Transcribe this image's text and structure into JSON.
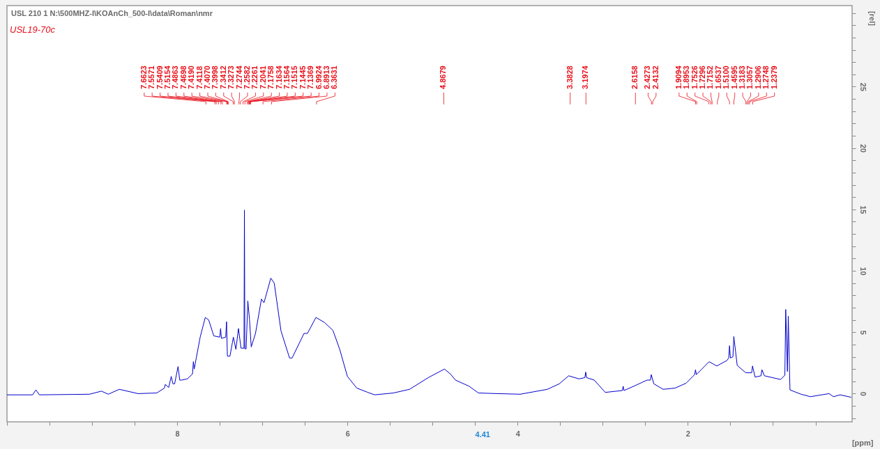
{
  "chart_data": {
    "type": "line",
    "title": "USL  210  1  N:\\500MHZ-I\\KOAnCh_500-I\\data\\Roman\\nmr",
    "subtitle": "USL19-70c",
    "xlabel": "[ppm]",
    "ylabel": "[rel]",
    "xlim": [
      10,
      0.07
    ],
    "ylim": [
      -2.3,
      31.6
    ],
    "xticks": [
      {
        "value": 10,
        "label": null
      },
      {
        "value": 9.5,
        "label": null
      },
      {
        "value": 9,
        "label": null
      },
      {
        "value": 8.5,
        "label": null
      },
      8,
      {
        "value": 7.5,
        "label": null
      },
      {
        "value": 7,
        "label": null
      },
      {
        "value": 6.5,
        "label": null
      },
      6,
      {
        "value": 5.5,
        "label": null
      },
      {
        "value": 5,
        "label": null
      },
      {
        "value": 4.5,
        "label": null
      },
      4,
      {
        "value": 3.5,
        "label": null
      },
      {
        "value": 3,
        "label": null
      },
      {
        "value": 2.5,
        "label": null
      },
      2,
      {
        "value": 1.5,
        "label": null
      },
      {
        "value": 1,
        "label": null
      },
      {
        "value": 0.5,
        "label": null
      }
    ],
    "yticks": [
      {
        "value": -2,
        "label": null
      },
      {
        "value": -1,
        "label": null
      },
      0,
      {
        "value": 1,
        "label": null
      },
      {
        "value": 2,
        "label": null
      },
      {
        "value": 3,
        "label": null
      },
      {
        "value": 4,
        "label": null
      },
      5,
      {
        "value": 6,
        "label": null
      },
      {
        "value": 7,
        "label": null
      },
      {
        "value": 8,
        "label": null
      },
      {
        "value": 9,
        "label": null
      },
      10,
      {
        "value": 11,
        "label": null
      },
      {
        "value": 12,
        "label": null
      },
      {
        "value": 13,
        "label": null
      },
      {
        "value": 14,
        "label": null
      },
      15,
      {
        "value": 16,
        "label": null
      },
      {
        "value": 17,
        "label": null
      },
      {
        "value": 18,
        "label": null
      },
      {
        "value": 19,
        "label": null
      },
      20,
      {
        "value": 21,
        "label": null
      },
      {
        "value": 22,
        "label": null
      },
      {
        "value": 23,
        "label": null
      },
      {
        "value": 24,
        "label": null
      },
      25,
      {
        "value": 26,
        "label": null
      },
      {
        "value": 27,
        "label": null
      },
      {
        "value": 28,
        "label": null
      },
      {
        "value": 29,
        "label": null
      },
      {
        "value": 30,
        "label": null
      },
      {
        "value": 31,
        "label": null
      }
    ],
    "grid": false,
    "marker": "none",
    "line_style": "solid",
    "series": [
      {
        "color": "#0000cc",
        "x": [
          10.0,
          9.7,
          9.66,
          9.62,
          9.03,
          8.89,
          8.81,
          8.68,
          8.46,
          8.24,
          8.15,
          8.14,
          8.1,
          8.07,
          8.05,
          8.03,
          7.99,
          7.97,
          7.95,
          7.88,
          7.82,
          7.81,
          7.8,
          7.73,
          7.67,
          7.63,
          7.57,
          7.5,
          7.49,
          7.48,
          7.43,
          7.42,
          7.41,
          7.38,
          7.34,
          7.31,
          7.28,
          7.25,
          7.215,
          7.21,
          7.205,
          7.19,
          7.17,
          7.15,
          7.13,
          7.08,
          7.01,
          6.98,
          6.9,
          6.86,
          6.78,
          6.68,
          6.65,
          6.51,
          6.47,
          6.37,
          6.27,
          6.17,
          6.09,
          6.0,
          5.89,
          5.76,
          5.68,
          5.46,
          5.27,
          5.05,
          4.86,
          4.79,
          4.73,
          4.57,
          4.46,
          4.24,
          3.97,
          3.65,
          3.51,
          3.4,
          3.28,
          3.21,
          3.2,
          3.19,
          3.1,
          2.97,
          2.77,
          2.76,
          2.75,
          2.62,
          2.48,
          2.44,
          2.43,
          2.4,
          2.29,
          2.15,
          2.02,
          1.92,
          1.91,
          1.9,
          1.75,
          1.66,
          1.54,
          1.52,
          1.51,
          1.5,
          1.47,
          1.46,
          1.42,
          1.32,
          1.25,
          1.24,
          1.21,
          1.14,
          1.13,
          1.1,
          0.91,
          0.86,
          0.85,
          0.83,
          0.82,
          0.8,
          0.67,
          0.56,
          0.34,
          0.29,
          0.21,
          0.08
        ],
        "values": [
          -0.1,
          -0.1,
          0.3,
          -0.1,
          -0.05,
          0.2,
          -0.05,
          0.35,
          0.0,
          0.05,
          0.45,
          0.75,
          0.5,
          1.4,
          0.8,
          0.8,
          2.2,
          1.1,
          1.1,
          1.2,
          1.6,
          2.6,
          2.0,
          4.6,
          6.2,
          6.0,
          4.7,
          4.6,
          5.3,
          4.5,
          4.6,
          5.85,
          3.05,
          3.05,
          4.6,
          3.6,
          5.3,
          3.7,
          3.7,
          14.95,
          3.65,
          3.65,
          7.55,
          6.0,
          3.8,
          4.9,
          7.7,
          7.4,
          9.4,
          9.0,
          5.1,
          2.9,
          2.9,
          4.9,
          4.9,
          6.2,
          5.8,
          5.15,
          3.6,
          1.4,
          0.45,
          0.1,
          -0.1,
          0.05,
          0.35,
          1.3,
          2.0,
          1.6,
          1.1,
          0.6,
          0.05,
          0.0,
          -0.05,
          0.35,
          0.8,
          1.45,
          1.2,
          1.3,
          1.75,
          1.3,
          1.1,
          0.1,
          0.25,
          0.6,
          0.25,
          0.65,
          1.1,
          1.1,
          1.55,
          0.8,
          0.35,
          0.45,
          0.85,
          1.55,
          1.95,
          1.55,
          2.6,
          2.25,
          2.7,
          2.9,
          3.9,
          2.9,
          3.0,
          4.65,
          2.3,
          1.7,
          1.7,
          2.25,
          1.35,
          1.45,
          1.95,
          1.45,
          1.15,
          1.5,
          6.85,
          1.8,
          6.3,
          0.3,
          -0.05,
          -0.25,
          0.0,
          -0.25,
          -0.1,
          -0.3
        ]
      }
    ],
    "annotations": [
      "4.41",
      "7.6623",
      "7.5571",
      "7.5409",
      "7.5154",
      "7.4863",
      "7.4698",
      "7.4190",
      "7.4118",
      "7.4070",
      "7.3998",
      "7.3412",
      "7.3273",
      "7.2744",
      "7.2582",
      "7.2261",
      "7.2041",
      "7.1758",
      "7.1634",
      "7.1564",
      "7.1515",
      "7.1445",
      "7.1369",
      "6.9924",
      "6.8913",
      "6.3631",
      "4.8679",
      "3.3828",
      "3.1974",
      "2.6158",
      "2.4273",
      "2.4132",
      "1.9094",
      "1.8953",
      "1.7526",
      "1.7296",
      "1.7152",
      "1.6537",
      "1.5100",
      "1.4595",
      "1.3183",
      "1.3057",
      "1.2906",
      "1.2748",
      "1.2379"
    ]
  }
}
